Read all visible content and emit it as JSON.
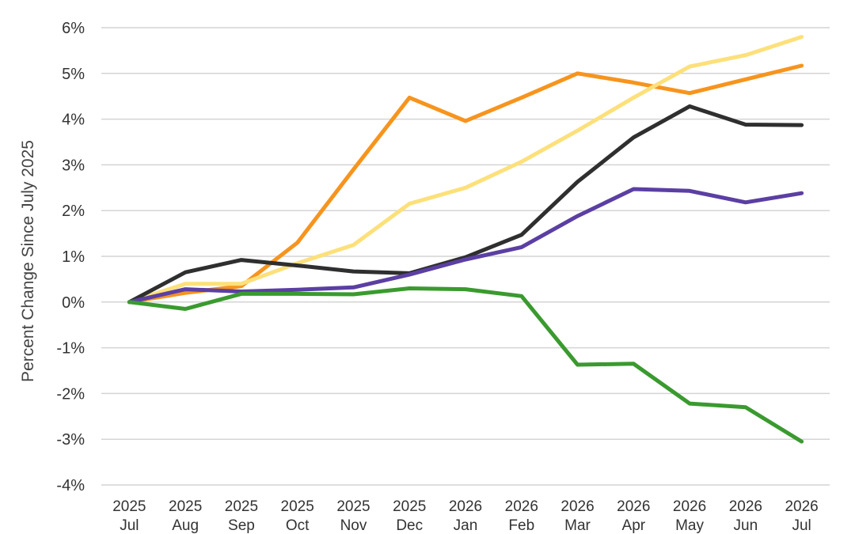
{
  "chart_data": {
    "type": "line",
    "title": "",
    "xlabel": "",
    "ylabel": "Percent Change Since July 2025",
    "ylim": [
      -4,
      6
    ],
    "yticks": [
      6,
      5,
      4,
      3,
      2,
      1,
      0,
      -1,
      -2,
      -3,
      -4
    ],
    "ytick_labels": [
      "6%",
      "5%",
      "4%",
      "3%",
      "2%",
      "1%",
      "0%",
      "-1%",
      "-2%",
      "-3%",
      "-4%"
    ],
    "grid": true,
    "categories": [
      {
        "year": "2025",
        "month": "Jul"
      },
      {
        "year": "2025",
        "month": "Aug"
      },
      {
        "year": "2025",
        "month": "Sep"
      },
      {
        "year": "2025",
        "month": "Oct"
      },
      {
        "year": "2025",
        "month": "Nov"
      },
      {
        "year": "2025",
        "month": "Dec"
      },
      {
        "year": "2026",
        "month": "Jan"
      },
      {
        "year": "2026",
        "month": "Feb"
      },
      {
        "year": "2026",
        "month": "Mar"
      },
      {
        "year": "2026",
        "month": "Apr"
      },
      {
        "year": "2026",
        "month": "May"
      },
      {
        "year": "2026",
        "month": "Jun"
      },
      {
        "year": "2026",
        "month": "Jul"
      }
    ],
    "series": [
      {
        "color": "#f7941d",
        "values": [
          0,
          0.2,
          0.35,
          1.3,
          2.9,
          4.47,
          3.96,
          4.47,
          5.0,
          4.8,
          4.57,
          4.87,
          5.17
        ]
      },
      {
        "color": "#fde07a",
        "values": [
          0,
          0.4,
          0.4,
          0.85,
          1.25,
          2.15,
          2.5,
          3.07,
          3.75,
          4.47,
          5.15,
          5.4,
          5.8
        ]
      },
      {
        "color": "#2f2f2f",
        "values": [
          0,
          0.65,
          0.92,
          0.8,
          0.67,
          0.63,
          0.98,
          1.47,
          2.63,
          3.6,
          4.28,
          3.88,
          3.87
        ]
      },
      {
        "color": "#5b3fa3",
        "values": [
          0,
          0.28,
          0.23,
          0.27,
          0.32,
          0.6,
          0.93,
          1.2,
          1.88,
          2.47,
          2.43,
          2.18,
          2.38
        ]
      },
      {
        "color": "#3a9a2f",
        "values": [
          0,
          -0.15,
          0.18,
          0.18,
          0.17,
          0.3,
          0.28,
          0.13,
          -1.37,
          -1.35,
          -2.22,
          -2.3,
          -3.05
        ]
      }
    ]
  }
}
